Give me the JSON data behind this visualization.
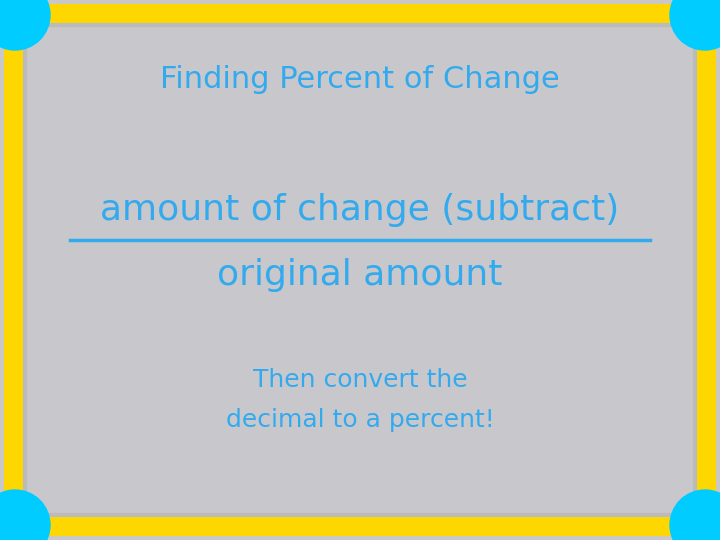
{
  "title": "Finding Percent of Change",
  "numerator": "amount of change (subtract)",
  "denominator": "original amount",
  "footer_line1": "Then convert the",
  "footer_line2": "decimal to a percent!",
  "bg_color": "#c8c8cc",
  "border_outer_color": "#FFD700",
  "text_color": "#33aaee",
  "circle_color": "#00ccff",
  "title_fontsize": 22,
  "numerator_fontsize": 26,
  "denominator_fontsize": 26,
  "footer_fontsize": 18,
  "figsize": [
    7.2,
    5.4
  ],
  "dpi": 100
}
